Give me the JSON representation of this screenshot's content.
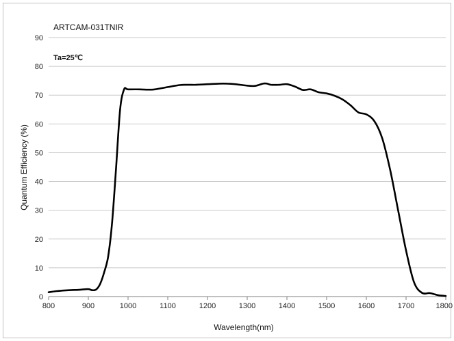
{
  "chart_data": {
    "type": "line",
    "title": "ARTCAM-031TNIR",
    "annotation": "Ta=25℃",
    "xlabel": "Wavelength(nm)",
    "ylabel": "Quantum Efficiency (%)",
    "xlim": [
      800,
      1800
    ],
    "ylim": [
      0,
      90
    ],
    "xticks": [
      800,
      900,
      1000,
      1100,
      1200,
      1300,
      1400,
      1500,
      1600,
      1700,
      1800
    ],
    "yticks": [
      0,
      10,
      20,
      30,
      40,
      50,
      60,
      70,
      80,
      90
    ],
    "grid": true,
    "line_color": "#000000",
    "series": [
      {
        "x": [
          800,
          820,
          850,
          880,
          900,
          910,
          920,
          930,
          940,
          950,
          960,
          970,
          980,
          990,
          1000,
          1030,
          1060,
          1080,
          1100,
          1130,
          1150,
          1170,
          1200,
          1230,
          1250,
          1270,
          1300,
          1320,
          1340,
          1350,
          1360,
          1380,
          1400,
          1420,
          1440,
          1460,
          1480,
          1500,
          1520,
          1540,
          1560,
          1580,
          1600,
          1620,
          1640,
          1660,
          1680,
          1700,
          1720,
          1740,
          1760,
          1780,
          1800
        ],
        "y": [
          1.5,
          1.9,
          2.2,
          2.4,
          2.6,
          2.2,
          2.5,
          4.5,
          8.5,
          14,
          26,
          45,
          65,
          72,
          72,
          72,
          71.9,
          72.3,
          72.8,
          73.5,
          73.6,
          73.6,
          73.8,
          74,
          74,
          73.8,
          73.3,
          73.2,
          74,
          74,
          73.6,
          73.6,
          73.8,
          73,
          71.8,
          72,
          71,
          70.6,
          69.8,
          68.5,
          66.5,
          64,
          63.3,
          61,
          55,
          44,
          30,
          16,
          5,
          1.3,
          1.2,
          0.5,
          0.2
        ]
      }
    ]
  }
}
